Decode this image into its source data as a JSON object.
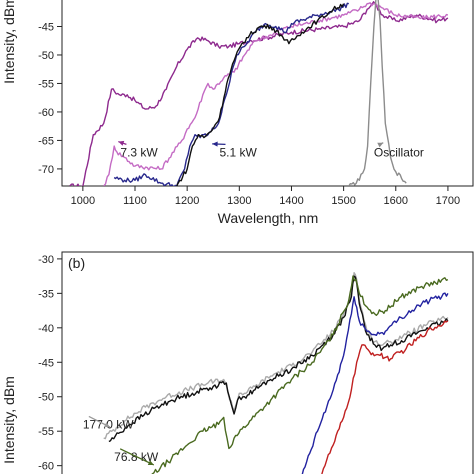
{
  "chart_data": [
    {
      "panel_label": "",
      "type": "line",
      "xlabel": "Wavelength, nm",
      "ylabel": "Intensity, dBm",
      "xlim": [
        960,
        1750
      ],
      "ylim": [
        -73,
        -40
      ],
      "xticks": [
        1000,
        1100,
        1200,
        1300,
        1400,
        1500,
        1600,
        1700
      ],
      "yticks": [
        -45,
        -50,
        -55,
        -60,
        -65,
        -70
      ],
      "grid": false,
      "series": [
        {
          "name": "",
          "color": "#8e2a8e",
          "x": [
            975,
            1000,
            1020,
            1040,
            1055,
            1070,
            1085,
            1100,
            1120,
            1140,
            1160,
            1180,
            1200,
            1220,
            1240,
            1260,
            1280,
            1300,
            1320,
            1350,
            1400,
            1450,
            1500,
            1530,
            1545,
            1555,
            1560,
            1575,
            1600,
            1640,
            1680,
            1700
          ],
          "y": [
            -73,
            -73,
            -64,
            -62,
            -56,
            -57,
            -57,
            -58,
            -59.5,
            -59,
            -56,
            -52,
            -49,
            -47,
            -47.5,
            -48.5,
            -48.5,
            -48,
            -47.5,
            -47,
            -46,
            -45.5,
            -45,
            -44,
            -42,
            -41,
            -41,
            -43,
            -44,
            -43,
            -44,
            -43.5
          ]
        },
        {
          "name": "7.3 kW",
          "color": "#c46bc4",
          "x": [
            1040,
            1050,
            1060,
            1065,
            1080,
            1100,
            1150,
            1190,
            1200,
            1215,
            1230,
            1240,
            1250,
            1270,
            1290,
            1310,
            1330,
            1360,
            1380,
            1400,
            1450,
            1500,
            1530,
            1545,
            1560,
            1600,
            1650,
            1700
          ],
          "y": [
            -73,
            -71,
            -66,
            -67,
            -68,
            -69.5,
            -70,
            -65,
            -63,
            -61,
            -57,
            -55,
            -56,
            -54,
            -53,
            -50,
            -47.5,
            -46.5,
            -45.5,
            -45,
            -44,
            -43,
            -42,
            -41,
            -41,
            -43,
            -43.5,
            -43
          ]
        },
        {
          "name": "5.1 kW",
          "color": "#28288c",
          "x": [
            1060,
            1080,
            1100,
            1120,
            1150,
            1180,
            1195,
            1205,
            1215,
            1225,
            1232,
            1240,
            1260,
            1275,
            1285,
            1295,
            1310,
            1330,
            1350,
            1370,
            1390,
            1400,
            1450,
            1490,
            1510
          ],
          "y": [
            -71.5,
            -72,
            -72,
            -71,
            -72.5,
            -73,
            -70,
            -66,
            -64,
            -64.5,
            -64,
            -64,
            -62,
            -57,
            -53,
            -50,
            -48.5,
            -46,
            -44.5,
            -45,
            -46,
            -44.5,
            -43,
            -42,
            -41
          ]
        },
        {
          "name": "",
          "color": "#111111",
          "x": [
            1180,
            1200,
            1210,
            1222,
            1232,
            1245,
            1262,
            1276,
            1290,
            1305,
            1320,
            1340,
            1360,
            1380,
            1395,
            1420,
            1450,
            1480,
            1500
          ],
          "y": [
            -73,
            -70,
            -66,
            -64,
            -64.5,
            -63.5,
            -61,
            -55,
            -51,
            -48,
            -46.5,
            -45,
            -45,
            -46.5,
            -48,
            -46,
            -44,
            -42,
            -41
          ]
        },
        {
          "name": "Oscillator",
          "color": "#8c8c8c",
          "x": [
            1510,
            1530,
            1540,
            1546,
            1552,
            1558,
            1562,
            1566,
            1570,
            1574,
            1580,
            1590,
            1600,
            1620
          ],
          "y": [
            -73,
            -72,
            -70,
            -66,
            -55,
            -45,
            -40,
            -40,
            -44,
            -52,
            -62,
            -68,
            -70.5,
            -72.5
          ]
        }
      ],
      "annotations": [
        {
          "text": "7.3 kW",
          "x": 1072,
          "y": -67.8,
          "arrow_to": [
            1068,
            -65.2
          ],
          "arrow_color": "#8e2a8e"
        },
        {
          "text": "5.1 kW",
          "x": 1262,
          "y": -67.8,
          "arrow_to": [
            1248,
            -65.6
          ],
          "arrow_color": "#28288c"
        },
        {
          "text": "Oscillator",
          "x": 1558,
          "y": -67.8,
          "arrow_to": [
            1576,
            -65.4
          ],
          "arrow_color": "#8c8c8c"
        }
      ]
    },
    {
      "panel_label": "(b)",
      "type": "line",
      "xlabel": "",
      "ylabel": "Intensity, dBm",
      "xlim": [
        960,
        1750
      ],
      "ylim": [
        -61.5,
        -29
      ],
      "xticks": [],
      "yticks": [
        -30,
        -35,
        -40,
        -45,
        -50,
        -55,
        -60
      ],
      "grid": false,
      "series": [
        {
          "name": "177.0 kW",
          "color": "#aaaaaa",
          "x": [
            1040,
            1080,
            1120,
            1160,
            1200,
            1240,
            1270,
            1290,
            1300,
            1310,
            1330,
            1360,
            1400,
            1440,
            1460,
            1480,
            1500,
            1515,
            1520,
            1525,
            1530,
            1545,
            1560,
            1575,
            1590,
            1620,
            1660,
            1700
          ],
          "y": [
            -56,
            -53.5,
            -51.5,
            -50,
            -49,
            -48,
            -47.5,
            -52,
            -49.5,
            -49.5,
            -48.5,
            -47,
            -45.5,
            -43.5,
            -42,
            -40.5,
            -38,
            -35,
            -32,
            -33,
            -36,
            -40.5,
            -42,
            -42.5,
            -42,
            -41,
            -39.5,
            -38.5
          ]
        },
        {
          "name": "",
          "color": "#111111",
          "x": [
            1050,
            1090,
            1130,
            1170,
            1210,
            1250,
            1275,
            1290,
            1300,
            1310,
            1330,
            1360,
            1400,
            1440,
            1460,
            1480,
            1500,
            1515,
            1520,
            1525,
            1530,
            1545,
            1560,
            1575,
            1590,
            1620,
            1660,
            1700
          ],
          "y": [
            -56.5,
            -54,
            -52,
            -50.5,
            -49.5,
            -48.5,
            -48,
            -52.5,
            -50,
            -50,
            -49,
            -47.5,
            -46,
            -44,
            -42.5,
            -41,
            -38.5,
            -35.5,
            -32.5,
            -33.5,
            -36.5,
            -41,
            -42.5,
            -43,
            -42.5,
            -41.5,
            -40,
            -39
          ]
        },
        {
          "name": "76.8 kW",
          "color": "#4a6a20",
          "x": [
            1130,
            1170,
            1200,
            1230,
            1260,
            1270,
            1280,
            1290,
            1320,
            1360,
            1400,
            1440,
            1480,
            1510,
            1518,
            1524,
            1530,
            1545,
            1560,
            1580,
            1610,
            1650,
            1700
          ],
          "y": [
            -61.5,
            -59,
            -57,
            -55,
            -54,
            -53,
            -57.5,
            -56,
            -53.5,
            -50.5,
            -47.5,
            -45,
            -41,
            -36,
            -32.5,
            -33,
            -35,
            -37,
            -38,
            -37.5,
            -35.5,
            -34,
            -33
          ]
        },
        {
          "name": "",
          "color": "#2222a0",
          "x": [
            1420,
            1450,
            1480,
            1500,
            1515,
            1520,
            1525,
            1530,
            1545,
            1560,
            1580,
            1610,
            1650,
            1700
          ],
          "y": [
            -61.5,
            -55,
            -49,
            -44,
            -38,
            -35.5,
            -37,
            -39,
            -40.5,
            -41,
            -40.5,
            -38.5,
            -36.5,
            -35
          ]
        },
        {
          "name": "",
          "color": "#c02020",
          "x": [
            1455,
            1480,
            1500,
            1515,
            1525,
            1535,
            1550,
            1570,
            1590,
            1620,
            1660,
            1700
          ],
          "y": [
            -61.5,
            -57,
            -53,
            -49,
            -45,
            -42.5,
            -43.5,
            -44,
            -44.5,
            -43,
            -40.5,
            -39
          ]
        }
      ],
      "annotations": [
        {
          "text": "177.0 kW",
          "x": 1000,
          "y": -54.6,
          "arrow_to": [
            1052,
            -54.4
          ],
          "arrow_color": "#999999"
        },
        {
          "text": "76.8 kW",
          "x": 1060,
          "y": -59.3,
          "arrow_to": [
            1136,
            -59.9
          ],
          "arrow_color": "#4a6a20"
        }
      ]
    }
  ]
}
